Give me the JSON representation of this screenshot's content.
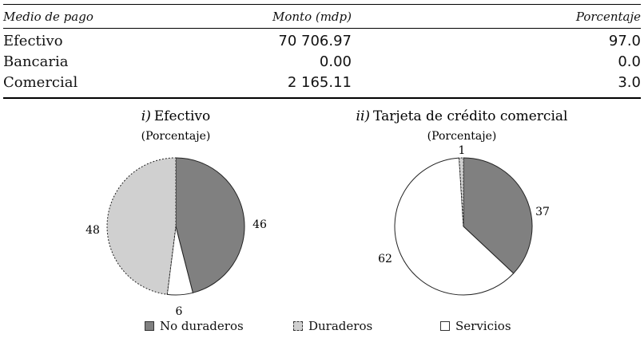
{
  "table": {
    "headers": [
      "Medio de pago",
      "Monto (mdp)",
      "Porcentaje"
    ],
    "rows": [
      {
        "label": "Efectivo",
        "monto": "70 706.97",
        "porcentaje": "97.0"
      },
      {
        "label": "Bancaria",
        "monto": "0.00",
        "porcentaje": "0.0"
      },
      {
        "label": "Comercial",
        "monto": "2 165.11",
        "porcentaje": "3.0"
      }
    ]
  },
  "legend": [
    {
      "label": "No duraderos",
      "color": "#808080"
    },
    {
      "label": "Duraderos",
      "color": "#d0d0d0"
    },
    {
      "label": "Servicios",
      "color": "#ffffff"
    }
  ],
  "chart_data": [
    {
      "type": "pie",
      "title_prefix": "i)",
      "title": "Efectivo",
      "subtitle": "(Porcentaje)",
      "categories": [
        "No duraderos",
        "Servicios",
        "Duraderos"
      ],
      "values": [
        46,
        6,
        48
      ],
      "colors": [
        "#808080",
        "#ffffff",
        "#d0d0d0"
      ]
    },
    {
      "type": "pie",
      "title_prefix": "ii)",
      "title": "Tarjeta de crédito comercial",
      "subtitle": "(Porcentaje)",
      "categories": [
        "No duraderos",
        "Servicios",
        "Duraderos"
      ],
      "values": [
        37,
        62,
        1
      ],
      "colors": [
        "#808080",
        "#ffffff",
        "#d0d0d0"
      ]
    }
  ]
}
